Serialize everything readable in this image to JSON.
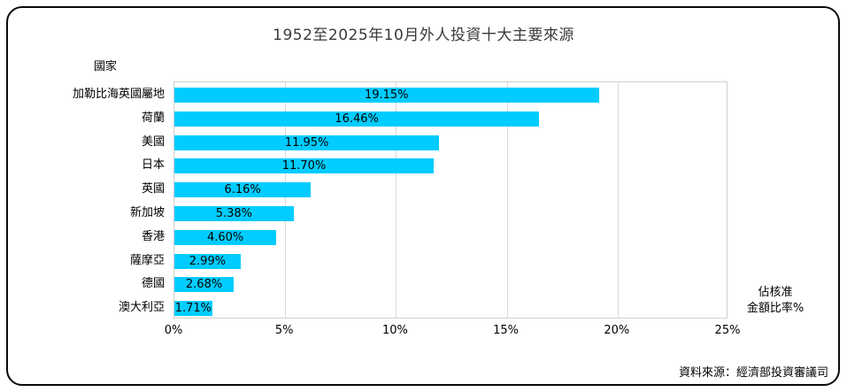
{
  "title": "1952至2025年10月外人投資十大主要來源",
  "y_axis_title": "國家",
  "x_axis_title_line1": "佔核准",
  "x_axis_title_line2": "金額比率%",
  "source_note": "資料來源：經濟部投資審議司",
  "colors": {
    "bar": "#00CCFF",
    "grid": "#D9D9D9",
    "plot_border": "#D0D0D0",
    "frame_border": "#0A0A0A",
    "text": "#000000",
    "title_text": "#3A3A3A"
  },
  "chart_data": {
    "type": "bar",
    "orientation": "horizontal",
    "title": "1952至2025年10月外人投資十大主要來源",
    "xlabel": "佔核准金額比率%",
    "ylabel": "國家",
    "categories": [
      "加勒比海英國屬地",
      "荷蘭",
      "美國",
      "日本",
      "英國",
      "新加坡",
      "香港",
      "薩摩亞",
      "德國",
      "澳大利亞"
    ],
    "values": [
      19.15,
      16.46,
      11.95,
      11.7,
      6.16,
      5.38,
      4.6,
      2.99,
      2.68,
      1.71
    ],
    "value_labels": [
      "19.15%",
      "16.46%",
      "11.95%",
      "11.70%",
      "6.16%",
      "5.38%",
      "4.60%",
      "2.99%",
      "2.68%",
      "1.71%"
    ],
    "x_tick_values": [
      0,
      5,
      10,
      15,
      20,
      25
    ],
    "x_tick_labels": [
      "0%",
      "5%",
      "10%",
      "15%",
      "20%",
      "25%"
    ],
    "xlim": [
      0,
      25
    ],
    "grid": true,
    "legend": false
  }
}
